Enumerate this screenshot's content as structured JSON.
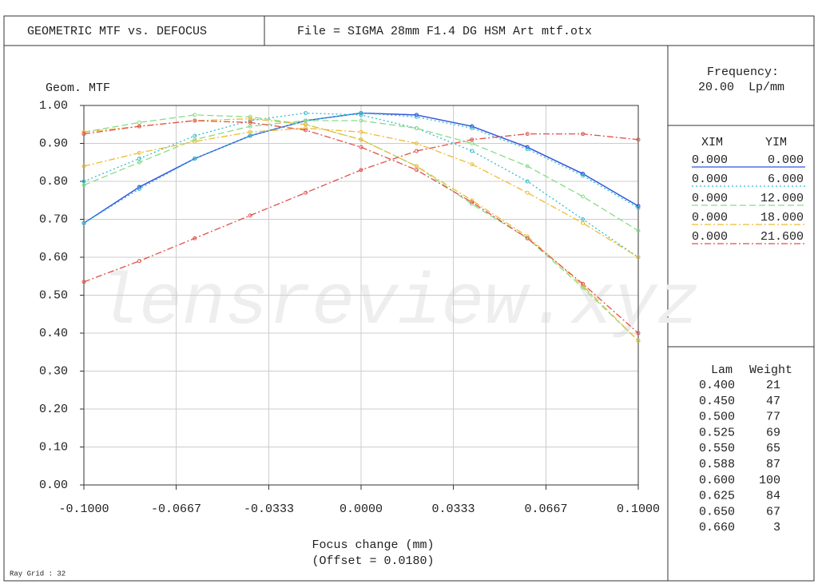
{
  "header": {
    "title": "GEOMETRIC MTF vs. DEFOCUS",
    "file": "File = SIGMA 28mm F1.4 DG HSM Art mtf.otx"
  },
  "chart_data": {
    "type": "line",
    "ylabel": "Geom. MTF",
    "xlabel": "Focus change (mm)",
    "offset": "(Offset = 0.0180)",
    "watermark": "lensreview.xyz",
    "x": [
      -0.1,
      -0.08,
      -0.06,
      -0.04,
      -0.02,
      0,
      0.02,
      0.04,
      0.06,
      0.08,
      0.1
    ],
    "xlim": [
      -0.1,
      0.1
    ],
    "xticks": [
      {
        "value": -0.1,
        "label": "-0.1000"
      },
      {
        "value": -0.0667,
        "label": "-0.0667"
      },
      {
        "value": -0.0333,
        "label": "-0.0333"
      },
      {
        "value": 0,
        "label": "0.0000"
      },
      {
        "value": 0.0333,
        "label": "0.0333"
      },
      {
        "value": 0.0667,
        "label": "0.0667"
      },
      {
        "value": 0.1,
        "label": "0.1000"
      }
    ],
    "ylim": [
      0,
      1
    ],
    "yticks": [
      {
        "value": 0,
        "label": "0.00"
      },
      {
        "value": 0.1,
        "label": "0.10"
      },
      {
        "value": 0.2,
        "label": "0.20"
      },
      {
        "value": 0.3,
        "label": "0.30"
      },
      {
        "value": 0.4,
        "label": "0.40"
      },
      {
        "value": 0.5,
        "label": "0.50"
      },
      {
        "value": 0.6,
        "label": "0.60"
      },
      {
        "value": 0.7,
        "label": "0.70"
      },
      {
        "value": 0.8,
        "label": "0.80"
      },
      {
        "value": 0.9,
        "label": "0.90"
      },
      {
        "value": 1,
        "label": "1.00"
      }
    ],
    "grid": true,
    "fields": [
      {
        "xim": "0.000",
        "yim": "0.000",
        "color": "#3355dd",
        "dash": "none",
        "tangential": [
          0.69,
          0.785,
          0.86,
          0.92,
          0.96,
          0.98,
          0.975,
          0.945,
          0.89,
          0.82,
          0.735
        ],
        "sagittal": [
          0.69,
          0.785,
          0.86,
          0.92,
          0.96,
          0.98,
          0.975,
          0.945,
          0.89,
          0.82,
          0.735
        ]
      },
      {
        "xim": "0.000",
        "yim": "6.000",
        "color": "#33bbcc",
        "dash": "2,3",
        "tangential": [
          0.69,
          0.78,
          0.86,
          0.92,
          0.96,
          0.98,
          0.97,
          0.94,
          0.885,
          0.815,
          0.73
        ],
        "sagittal": [
          0.8,
          0.86,
          0.92,
          0.96,
          0.98,
          0.975,
          0.94,
          0.88,
          0.8,
          0.7,
          0.6
        ]
      },
      {
        "xim": "0.000",
        "yim": "12.000",
        "color": "#88dd88",
        "dash": "8,4",
        "tangential": [
          0.79,
          0.85,
          0.91,
          0.945,
          0.96,
          0.96,
          0.94,
          0.9,
          0.84,
          0.76,
          0.67
        ],
        "sagittal": [
          0.93,
          0.955,
          0.975,
          0.97,
          0.95,
          0.91,
          0.84,
          0.74,
          0.65,
          0.52,
          0.38
        ]
      },
      {
        "xim": "0.000",
        "yim": "18.000",
        "color": "#eebb33",
        "dash": "8,3,2,3",
        "tangential": [
          0.84,
          0.875,
          0.905,
          0.93,
          0.94,
          0.93,
          0.9,
          0.845,
          0.77,
          0.69,
          0.6
        ],
        "sagittal": [
          0.93,
          0.945,
          0.96,
          0.965,
          0.95,
          0.91,
          0.84,
          0.75,
          0.655,
          0.525,
          0.38
        ]
      },
      {
        "xim": "0.000",
        "yim": "21.600",
        "color": "#e0504a",
        "dash": "8,3,2,3",
        "tangential": [
          0.535,
          0.59,
          0.65,
          0.71,
          0.77,
          0.83,
          0.88,
          0.91,
          0.925,
          0.925,
          0.91
        ],
        "sagittal": [
          0.925,
          0.945,
          0.96,
          0.955,
          0.935,
          0.89,
          0.83,
          0.745,
          0.65,
          0.53,
          0.4
        ]
      }
    ]
  },
  "frequency": {
    "label": "Frequency:",
    "value": "20.00  Lp/mm"
  },
  "field_table": {
    "xim_header": "XIM",
    "yim_header": "YIM"
  },
  "wavelengths": {
    "lam_header": "Lam",
    "weight_header": "Weight",
    "rows": [
      [
        "0.400",
        "21"
      ],
      [
        "0.450",
        "47"
      ],
      [
        "0.500",
        "77"
      ],
      [
        "0.525",
        "69"
      ],
      [
        "0.550",
        "65"
      ],
      [
        "0.588",
        "87"
      ],
      [
        "0.600",
        "100"
      ],
      [
        "0.625",
        "84"
      ],
      [
        "0.650",
        "67"
      ],
      [
        "0.660",
        "3"
      ]
    ]
  },
  "footer": "Ray Grid : 32"
}
